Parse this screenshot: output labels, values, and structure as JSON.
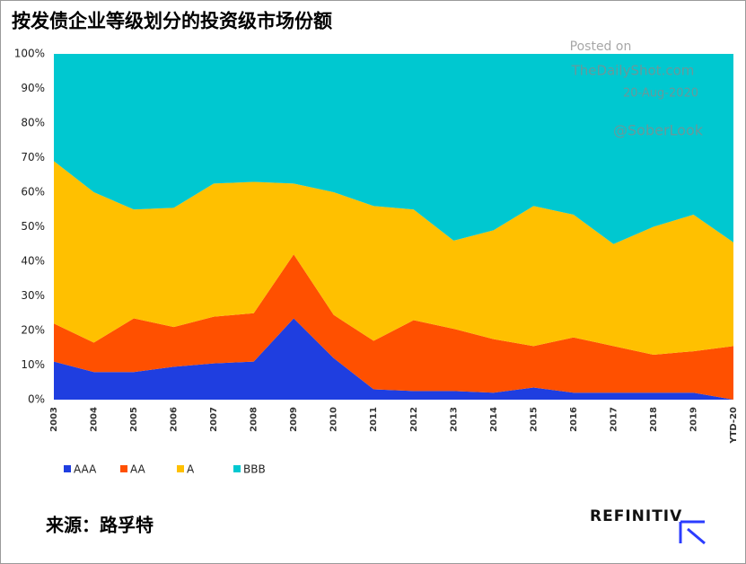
{
  "chart_data": {
    "type": "stacked_area",
    "title": "按发债企业等级划分的投资级市场份额",
    "categories": [
      "2003",
      "2004",
      "2005",
      "2006",
      "2007",
      "2008",
      "2009",
      "2010",
      "2011",
      "2012",
      "2013",
      "2014",
      "2015",
      "2016",
      "2017",
      "2018",
      "2019",
      "YTD-20"
    ],
    "series": [
      {
        "name": "AAA",
        "color": "#1f3ee0",
        "values": [
          11,
          8,
          8,
          9.5,
          10.5,
          11,
          23.5,
          12,
          3,
          2.5,
          2.5,
          2,
          3.5,
          2,
          2,
          2,
          2,
          0
        ]
      },
      {
        "name": "AA",
        "color": "#ff5000",
        "values": [
          11,
          8.5,
          15.5,
          11.5,
          13.5,
          14,
          18.5,
          12.5,
          14,
          20.5,
          18,
          15.5,
          12,
          16,
          13.5,
          11,
          12,
          15.5
        ]
      },
      {
        "name": "A",
        "color": "#ffc000",
        "values": [
          47,
          43.5,
          31.5,
          34.5,
          38.5,
          38,
          20.5,
          35.5,
          39,
          32,
          25.5,
          31.5,
          40.5,
          35.5,
          29.5,
          37,
          39.5,
          30
        ]
      },
      {
        "name": "BBB",
        "color": "#00c8d0",
        "values": [
          31,
          40,
          45,
          44.5,
          37.5,
          37,
          37.5,
          40,
          44,
          45,
          54,
          51,
          44,
          46.5,
          55,
          50,
          46.5,
          54.5
        ]
      }
    ],
    "ylim": [
      0,
      100
    ],
    "yticks": [
      {
        "value": 0,
        "label": "0%"
      },
      {
        "value": 10,
        "label": "10%"
      },
      {
        "value": 20,
        "label": "20%"
      },
      {
        "value": 30,
        "label": "30%"
      },
      {
        "value": 40,
        "label": "40%"
      },
      {
        "value": 50,
        "label": "50%"
      },
      {
        "value": 60,
        "label": "60%"
      },
      {
        "value": 70,
        "label": "70%"
      },
      {
        "value": 80,
        "label": "80%"
      },
      {
        "value": 90,
        "label": "90%"
      },
      {
        "value": 100,
        "label": "100%"
      }
    ],
    "watermark": [
      "Posted on",
      "TheDailyShot.com",
      "20-Aug-2020",
      "@SoberLook"
    ],
    "source": "来源：路孚特",
    "logo": "REFINITIV"
  }
}
